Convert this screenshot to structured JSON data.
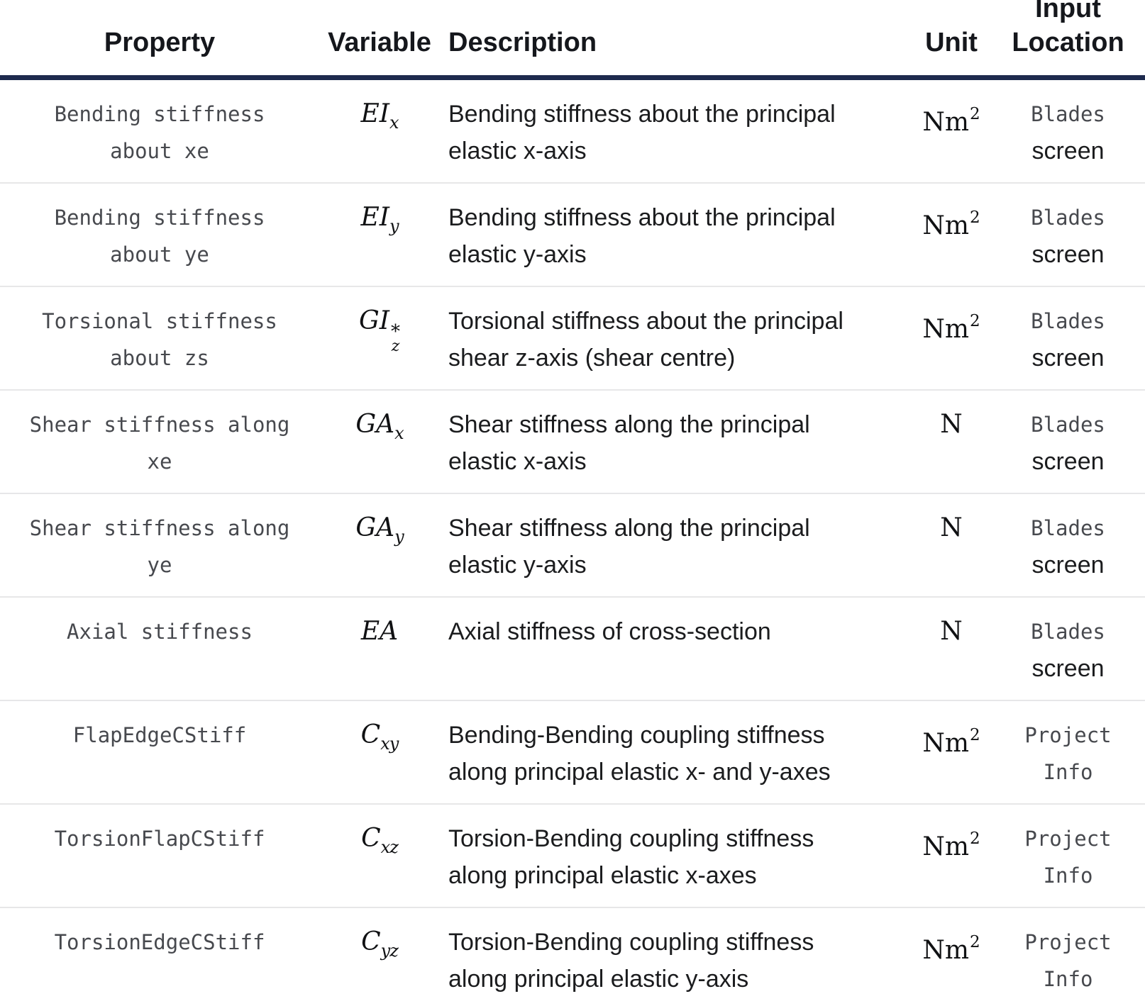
{
  "colors": {
    "header_rule": "#1e2a4e",
    "row_separator": "#e7e7e8",
    "code_text": "#47494e",
    "body_text": "#1b1c1e",
    "header_text": "#15171c"
  },
  "table": {
    "columns": [
      {
        "label": "Property"
      },
      {
        "label": "Variable"
      },
      {
        "label": "Description"
      },
      {
        "label": "Unit"
      },
      {
        "label": "Input Location"
      }
    ],
    "rows": [
      {
        "property_lines": [
          "Bending stiffness",
          "about xe"
        ],
        "variable": {
          "base": "EI",
          "sup": "",
          "sub": "x"
        },
        "description_lines": [
          "Bending stiffness about the principal",
          "elastic x-axis"
        ],
        "unit": {
          "base": "Nm",
          "sup": "2"
        },
        "location_lines": [
          {
            "text": "Blades",
            "code": true
          },
          {
            "text": "screen",
            "code": false
          }
        ]
      },
      {
        "property_lines": [
          "Bending stiffness",
          "about ye"
        ],
        "variable": {
          "base": "EI",
          "sup": "",
          "sub": "y"
        },
        "description_lines": [
          "Bending stiffness about the principal",
          "elastic y-axis"
        ],
        "unit": {
          "base": "Nm",
          "sup": "2"
        },
        "location_lines": [
          {
            "text": "Blades",
            "code": true
          },
          {
            "text": "screen",
            "code": false
          }
        ]
      },
      {
        "property_lines": [
          "Torsional stiffness",
          "about zs"
        ],
        "variable": {
          "base": "GI",
          "sup": "*",
          "sub": "z"
        },
        "description_lines": [
          "Torsional stiffness about the principal",
          "shear z-axis (shear centre)"
        ],
        "unit": {
          "base": "Nm",
          "sup": "2"
        },
        "location_lines": [
          {
            "text": "Blades",
            "code": true
          },
          {
            "text": "screen",
            "code": false
          }
        ]
      },
      {
        "property_lines": [
          "Shear stiffness along",
          "xe"
        ],
        "variable": {
          "base": "GA",
          "sup": "",
          "sub": "x"
        },
        "description_lines": [
          "Shear stiffness along the principal",
          "elastic x-axis"
        ],
        "unit": {
          "base": "N",
          "sup": ""
        },
        "location_lines": [
          {
            "text": "Blades",
            "code": true
          },
          {
            "text": "screen",
            "code": false
          }
        ]
      },
      {
        "property_lines": [
          "Shear stiffness along",
          "ye"
        ],
        "variable": {
          "base": "GA",
          "sup": "",
          "sub": "y"
        },
        "description_lines": [
          "Shear stiffness along the principal",
          "elastic y-axis"
        ],
        "unit": {
          "base": "N",
          "sup": ""
        },
        "location_lines": [
          {
            "text": "Blades",
            "code": true
          },
          {
            "text": "screen",
            "code": false
          }
        ]
      },
      {
        "property_lines": [
          "Axial stiffness"
        ],
        "variable": {
          "base": "EA",
          "sup": "",
          "sub": ""
        },
        "description_lines": [
          "Axial stiffness of cross-section"
        ],
        "unit": {
          "base": "N",
          "sup": ""
        },
        "location_lines": [
          {
            "text": "Blades",
            "code": true
          },
          {
            "text": "screen",
            "code": false
          }
        ]
      },
      {
        "property_lines": [
          "FlapEdgeCStiff"
        ],
        "variable": {
          "base": "C",
          "sup": "",
          "sub": "xy"
        },
        "description_lines": [
          "Bending-Bending coupling stiffness",
          "along principal elastic x- and y-axes"
        ],
        "unit": {
          "base": "Nm",
          "sup": "2"
        },
        "location_lines": [
          {
            "text": "Project",
            "code": true
          },
          {
            "text": "Info",
            "code": true
          }
        ]
      },
      {
        "property_lines": [
          "TorsionFlapCStiff"
        ],
        "variable": {
          "base": "C",
          "sup": "",
          "sub": "xz"
        },
        "description_lines": [
          "Torsion-Bending coupling stiffness",
          "along principal elastic x-axes"
        ],
        "unit": {
          "base": "Nm",
          "sup": "2"
        },
        "location_lines": [
          {
            "text": "Project",
            "code": true
          },
          {
            "text": "Info",
            "code": true
          }
        ]
      },
      {
        "property_lines": [
          "TorsionEdgeCStiff"
        ],
        "variable": {
          "base": "C",
          "sup": "",
          "sub": "yz"
        },
        "description_lines": [
          "Torsion-Bending coupling stiffness",
          "along principal elastic y-axis"
        ],
        "unit": {
          "base": "Nm",
          "sup": "2"
        },
        "location_lines": [
          {
            "text": "Project",
            "code": true
          },
          {
            "text": "Info",
            "code": true
          }
        ]
      }
    ]
  }
}
